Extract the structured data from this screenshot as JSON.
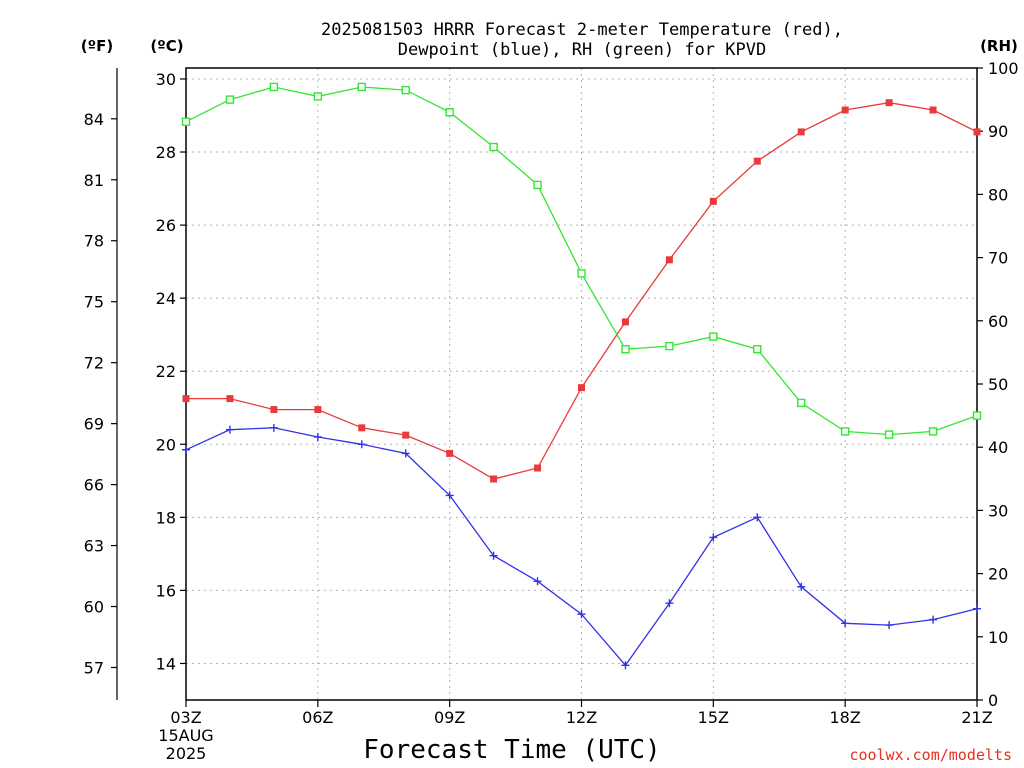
{
  "chart_data": {
    "type": "line",
    "title": "2025081503 HRRR Forecast 2-meter Temperature (red),",
    "subtitle": "Dewpoint (blue), RH (green) for KPVD",
    "xlabel": "Forecast Time (UTC)",
    "x_tick_labels": [
      "03Z",
      "06Z",
      "09Z",
      "12Z",
      "15Z",
      "18Z",
      "21Z"
    ],
    "x_date_line1": "15AUG",
    "x_date_line2": "2025",
    "hours": [
      "03Z",
      "04Z",
      "05Z",
      "06Z",
      "07Z",
      "08Z",
      "09Z",
      "10Z",
      "11Z",
      "12Z",
      "13Z",
      "14Z",
      "15Z",
      "16Z",
      "17Z",
      "18Z",
      "19Z",
      "20Z",
      "21Z"
    ],
    "left_outer_unit": "(ºF)",
    "left_inner_unit": "(ºC)",
    "right_unit": "(RH)",
    "celsius_axis": {
      "ylim": [
        13,
        30.3
      ],
      "ticks": [
        "14",
        "16",
        "18",
        "20",
        "22",
        "24",
        "26",
        "28",
        "30"
      ]
    },
    "fahrenheit_axis": {
      "ylim": [
        55.4,
        86.5
      ],
      "ticks": [
        "57",
        "60",
        "63",
        "66",
        "69",
        "72",
        "75",
        "78",
        "81",
        "84"
      ]
    },
    "rh_axis": {
      "ylim": [
        0,
        100
      ],
      "ticks": [
        "0",
        "10",
        "20",
        "30",
        "40",
        "50",
        "60",
        "70",
        "80",
        "90",
        "100"
      ]
    },
    "grid": true,
    "series": [
      {
        "name": "Temperature",
        "axis": "celsius",
        "color": "#e83a3a",
        "marker": "filled-square",
        "values": [
          21.25,
          21.25,
          20.95,
          20.95,
          20.45,
          20.25,
          19.75,
          19.05,
          19.35,
          21.55,
          23.35,
          25.05,
          26.65,
          27.75,
          28.55,
          29.15,
          29.35,
          29.15,
          28.55
        ]
      },
      {
        "name": "Dewpoint",
        "axis": "celsius",
        "color": "#3232e6",
        "marker": "plus",
        "values": [
          19.85,
          20.4,
          20.45,
          20.2,
          20.0,
          19.75,
          18.6,
          16.95,
          16.25,
          15.35,
          13.95,
          15.65,
          17.45,
          18.0,
          16.1,
          15.1,
          15.05,
          15.2,
          15.5
        ]
      },
      {
        "name": "RH",
        "axis": "rh",
        "color": "#32e632",
        "marker": "open-square",
        "values": [
          91.5,
          95.0,
          97.0,
          95.5,
          97.0,
          96.5,
          93.0,
          87.5,
          81.5,
          67.5,
          55.5,
          56.0,
          57.5,
          55.5,
          47.0,
          42.5,
          42.0,
          42.5,
          45.0
        ]
      }
    ]
  },
  "credit": "coolwx.com/modelts"
}
